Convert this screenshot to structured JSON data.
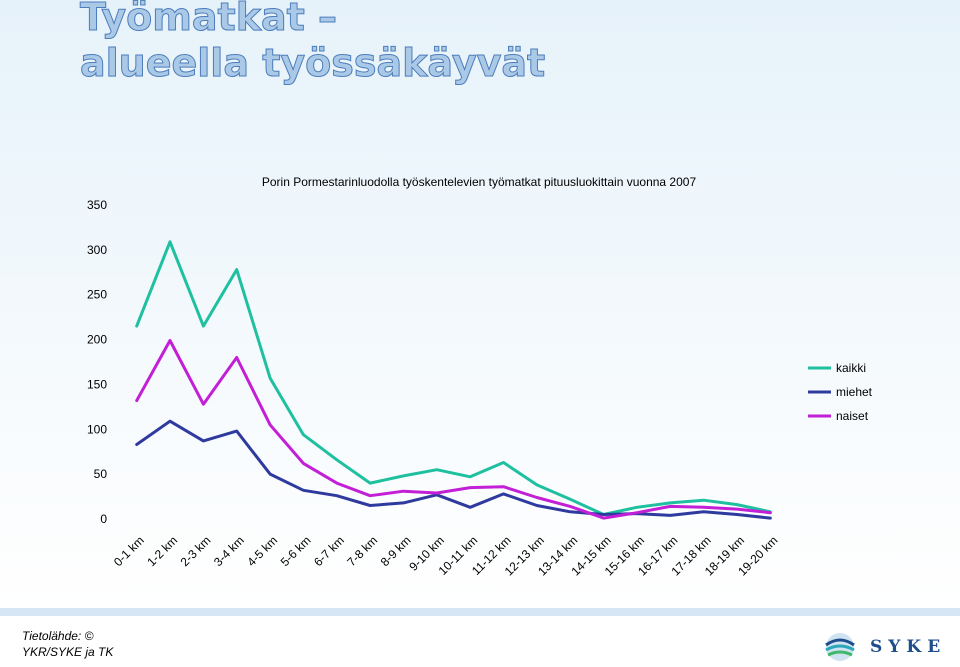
{
  "slide": {
    "title_line1": "Työmatkat –",
    "title_line2": "alueella työssäkäyvät",
    "source_line1": "Tietolähde: ©",
    "source_line2": "YKR/SYKE ja TK",
    "logo_text": "SYKE"
  },
  "colors": {
    "kaikki": "#1fc0a0",
    "miehet": "#2f3a9e",
    "naiset": "#c21fd6",
    "title": "#a9c9e6",
    "title_outline": "#4d7dbc"
  },
  "chart_data": {
    "type": "line",
    "title": "Porin Pormestarinluodolla työskentelevien työmatkat pituusluokittain vuonna 2007",
    "xlabel": "",
    "ylabel": "",
    "ylim": [
      0,
      350
    ],
    "yticks": [
      0,
      50,
      100,
      150,
      200,
      250,
      300,
      350
    ],
    "grid": false,
    "legend_position": "right",
    "categories": [
      "0-1 km",
      "1-2 km",
      "2-3 km",
      "3-4 km",
      "4-5 km",
      "5-6 km",
      "6-7 km",
      "7-8 km",
      "8-9 km",
      "9-10 km",
      "10-11 km",
      "11-12 km",
      "12-13 km",
      "13-14 km",
      "14-15 km",
      "15-16 km",
      "16-17 km",
      "17-18 km",
      "18-19 km",
      "19-20 km"
    ],
    "series": [
      {
        "name": "kaikki",
        "values": [
          215,
          309,
          215,
          278,
          157,
          94,
          66,
          40,
          48,
          55,
          47,
          63,
          38,
          22,
          5,
          13,
          18,
          21,
          16,
          8
        ]
      },
      {
        "name": "miehet",
        "values": [
          83,
          109,
          87,
          98,
          50,
          32,
          26,
          15,
          18,
          27,
          13,
          28,
          15,
          8,
          5,
          6,
          4,
          8,
          5,
          1
        ]
      },
      {
        "name": "naiset",
        "values": [
          132,
          199,
          128,
          180,
          105,
          62,
          40,
          26,
          31,
          29,
          35,
          36,
          24,
          14,
          1,
          7,
          14,
          13,
          11,
          7
        ]
      }
    ]
  }
}
